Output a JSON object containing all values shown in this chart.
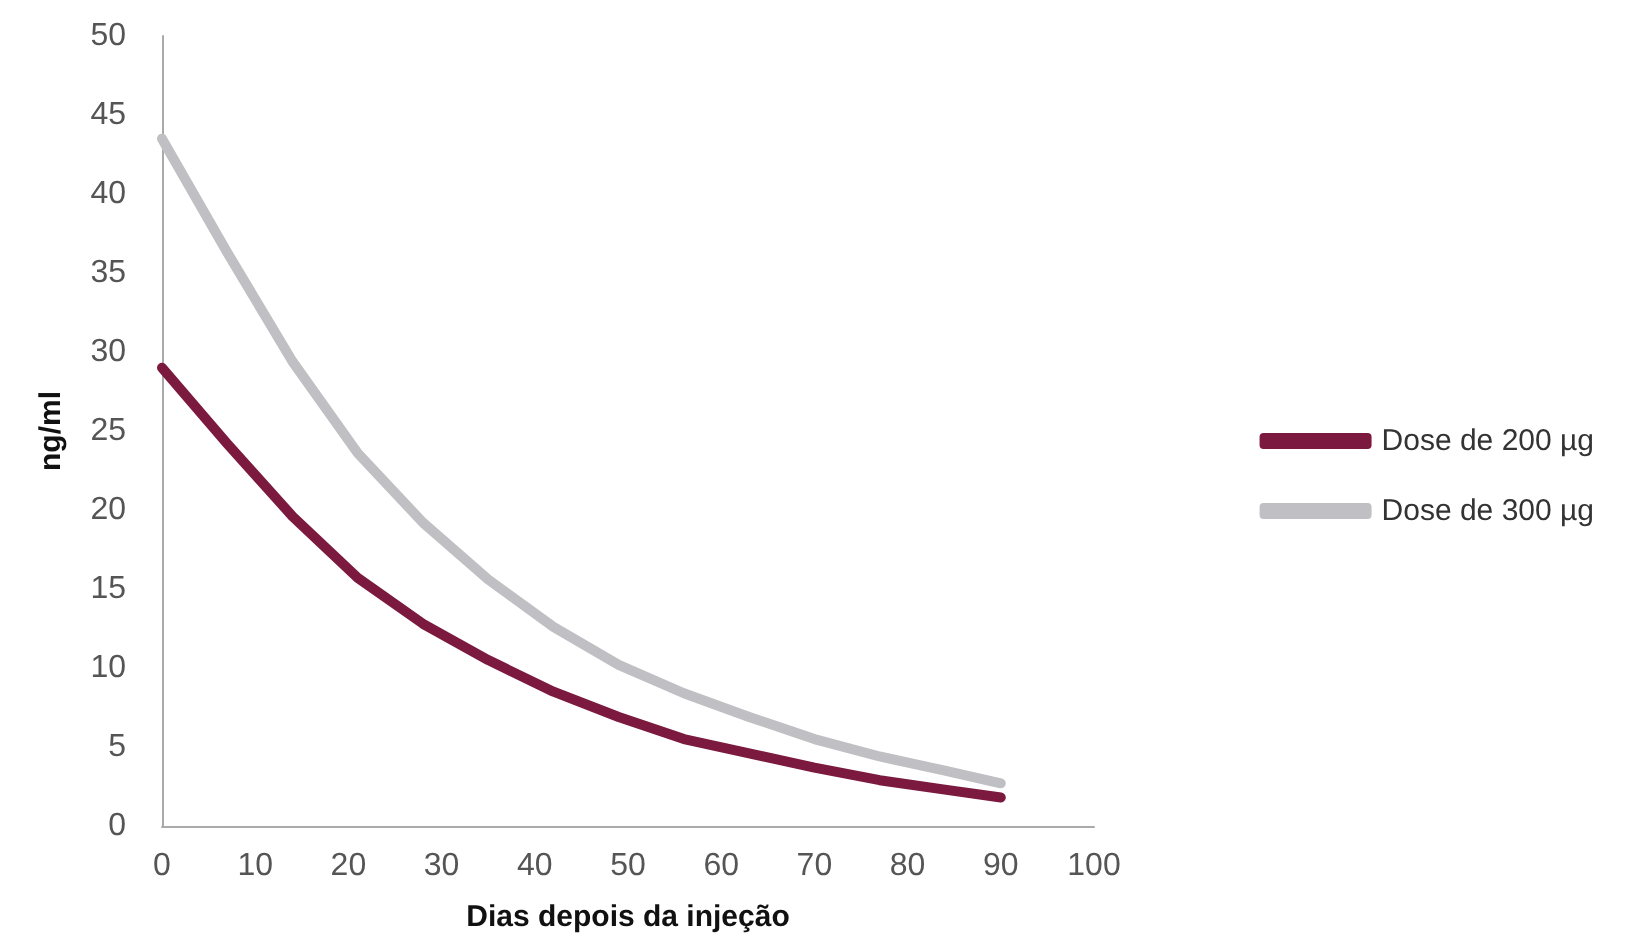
{
  "chart_data": {
    "type": "line",
    "xlabel": "Dias depois da injeção",
    "ylabel": "ng/ml",
    "x": [
      0,
      7,
      14,
      21,
      28,
      35,
      42,
      49,
      56,
      63,
      70,
      77,
      84,
      90
    ],
    "series": [
      {
        "name": "Dose de 200 µg",
        "color": "#7b1a3e",
        "values": [
          29,
          24.2,
          19.6,
          15.7,
          12.8,
          10.5,
          8.5,
          6.9,
          5.5,
          4.6,
          3.7,
          2.9,
          2.3,
          1.8
        ]
      },
      {
        "name": "Dose de 300 µg",
        "color": "#c0c0c4",
        "values": [
          43.5,
          36.3,
          29.4,
          23.6,
          19.2,
          15.6,
          12.6,
          10.2,
          8.4,
          6.9,
          5.5,
          4.4,
          3.5,
          2.7
        ]
      }
    ],
    "xlim": [
      0,
      100
    ],
    "xticks": [
      0,
      10,
      20,
      30,
      40,
      50,
      60,
      70,
      80,
      90,
      100
    ],
    "ylim": [
      0,
      50
    ],
    "yticks": [
      0,
      5,
      10,
      15,
      20,
      25,
      30,
      35,
      40,
      45,
      50
    ],
    "grid": false,
    "legend": "right",
    "marker": "none",
    "line_style": "solid"
  }
}
